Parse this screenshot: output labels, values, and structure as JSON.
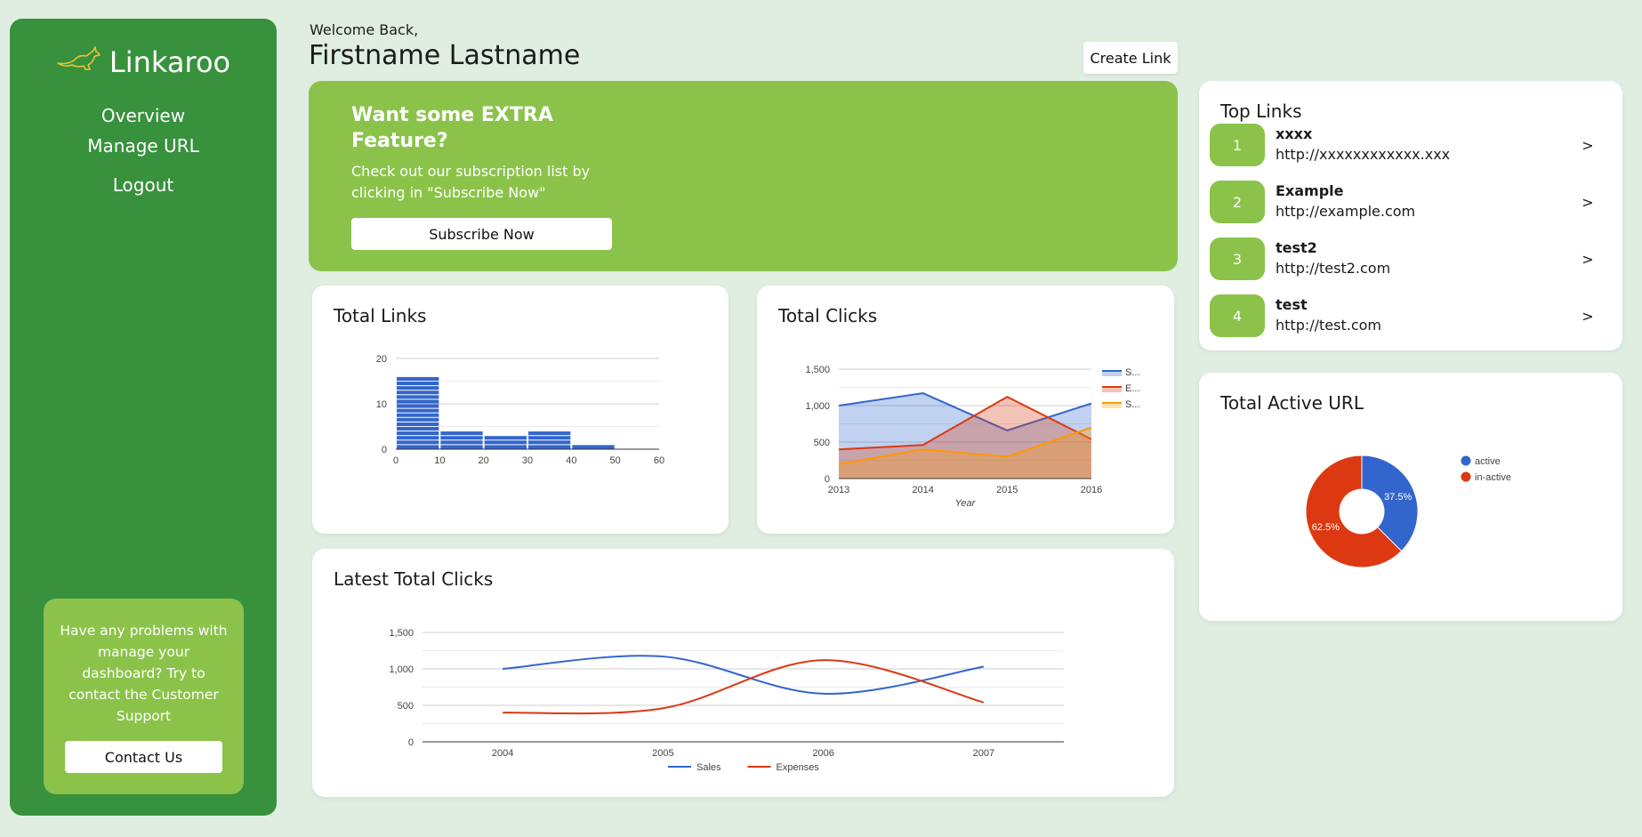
{
  "brand": {
    "name": "Linkaroo",
    "logo_icon": "kangaroo-icon"
  },
  "nav": {
    "items": [
      {
        "label": "Overview"
      },
      {
        "label": "Manage URL"
      },
      {
        "label": "Logout"
      }
    ]
  },
  "support": {
    "text": "Have any problems with manage your dashboard? Try to contact the Customer Support",
    "button": "Contact Us"
  },
  "header": {
    "welcome": "Welcome Back,",
    "username": "Firstname Lastname",
    "create_button": "Create Link"
  },
  "promo": {
    "title": "Want some EXTRA Feature?",
    "description": "Check out our subscription list by clicking in \"Subscribe Now\"",
    "button": "Subscribe Now"
  },
  "colors": {
    "background": "#dfeee0",
    "sidebar": "#38913d",
    "accent": "#8bc34a",
    "blue": "#3366cc",
    "red": "#dc3912",
    "orange": "#ff9900"
  },
  "cards": {
    "total_links": {
      "title": "Total Links"
    },
    "total_clicks": {
      "title": "Total Clicks"
    },
    "latest_clicks": {
      "title": "Latest Total Clicks"
    },
    "top_links": {
      "title": "Top Links"
    },
    "active_url": {
      "title": "Total Active URL"
    }
  },
  "top_links": [
    {
      "rank": "1",
      "name": "xxxx",
      "url": "http://xxxxxxxxxxxx.xxx",
      "arrow": ">"
    },
    {
      "rank": "2",
      "name": "Example",
      "url": "http://example.com",
      "arrow": ">"
    },
    {
      "rank": "3",
      "name": "test2",
      "url": "http://test2.com",
      "arrow": ">"
    },
    {
      "rank": "4",
      "name": "test",
      "url": "http://test.com",
      "arrow": ">"
    }
  ],
  "chart_data": [
    {
      "type": "bar",
      "chart_id": "total-links",
      "title": "Total Links",
      "bins": [
        [
          0,
          10
        ],
        [
          10,
          20
        ],
        [
          20,
          30
        ],
        [
          30,
          40
        ],
        [
          40,
          50
        ]
      ],
      "values": [
        16,
        4,
        3,
        4,
        1
      ],
      "xlim": [
        0,
        60
      ],
      "xticks": [
        "0",
        "10",
        "20",
        "30",
        "40",
        "50",
        "60"
      ],
      "ylim": [
        0,
        20
      ],
      "yticks": [
        "0",
        "10",
        "20"
      ]
    },
    {
      "type": "area",
      "chart_id": "total-clicks",
      "title": "Total Clicks",
      "xlabel": "Year",
      "categories": [
        "2013",
        "2014",
        "2015",
        "2016"
      ],
      "series": [
        {
          "name": "S...",
          "color": "#3366cc",
          "values": [
            1000,
            1170,
            660,
            1030
          ]
        },
        {
          "name": "E...",
          "color": "#dc3912",
          "values": [
            400,
            460,
            1120,
            540
          ]
        },
        {
          "name": "S...",
          "color": "#ff9900",
          "values": [
            200,
            400,
            300,
            700
          ]
        }
      ],
      "ylim": [
        0,
        1500
      ],
      "yticks": [
        "0",
        "500",
        "1,000",
        "1,500"
      ],
      "legend": "right"
    },
    {
      "type": "line",
      "chart_id": "latest-clicks",
      "title": "Latest Total Clicks",
      "categories": [
        "2004",
        "2005",
        "2006",
        "2007"
      ],
      "series": [
        {
          "name": "Sales",
          "color": "#3366cc",
          "values": [
            1000,
            1170,
            660,
            1030
          ]
        },
        {
          "name": "Expenses",
          "color": "#dc3912",
          "values": [
            400,
            460,
            1120,
            540
          ]
        }
      ],
      "ylim": [
        0,
        1500
      ],
      "yticks": [
        "0",
        "500",
        "1,000",
        "1,500"
      ],
      "legend": "bottom",
      "smooth": true
    },
    {
      "type": "pie",
      "chart_id": "active-url",
      "title": "Total Active URL",
      "donut": true,
      "slices": [
        {
          "label": "active",
          "value": 37.5,
          "display": "37.5%",
          "color": "#3366cc"
        },
        {
          "label": "in-active",
          "value": 62.5,
          "display": "62.5%",
          "color": "#dc3912"
        }
      ],
      "legend": "right"
    }
  ]
}
